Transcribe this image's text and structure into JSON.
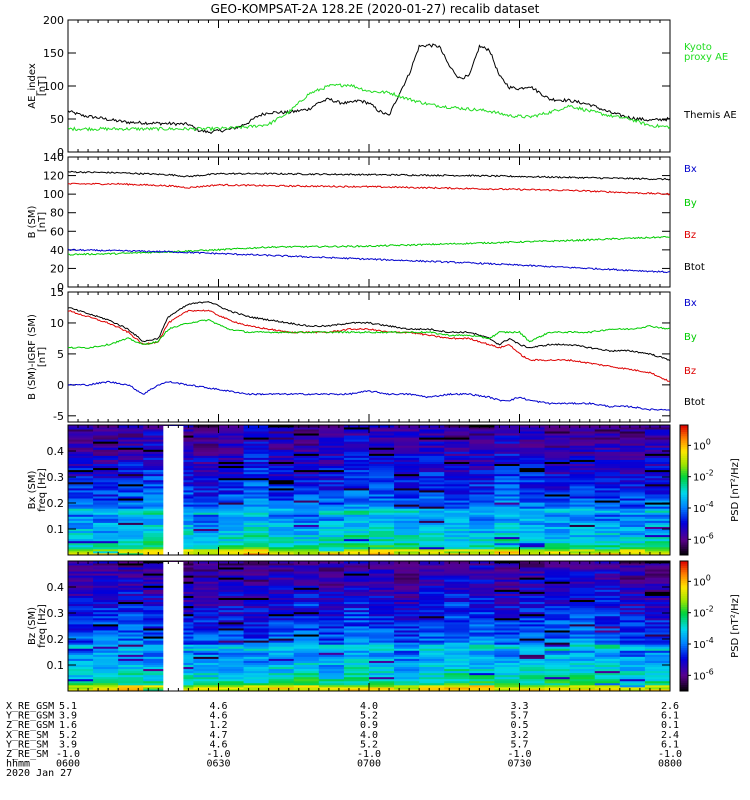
{
  "title": "GEO-KOMPSAT-2A 128.2E (2020-01-27) recalib dataset",
  "colors": {
    "black": "#000000",
    "red": "#dd0000",
    "green": "#00cc00",
    "blue": "#0000cc",
    "kyoto": "#22dd22"
  },
  "chart_data": [
    {
      "type": "line",
      "title": "AE index",
      "ylabel": "AE_index [nT]",
      "ylabel_lines": [
        "AE_index",
        "[nT]"
      ],
      "ylim": [
        0,
        200
      ],
      "yticks": [
        0,
        50,
        100,
        150,
        200
      ],
      "xlim": [
        0,
        120
      ],
      "legend": [
        {
          "label": "Kyoto",
          "color": "#22dd22"
        },
        {
          "label": "proxy AE",
          "color": "#22dd22"
        },
        {
          "label": "Themis AE",
          "color": "#000000"
        }
      ],
      "series": [
        {
          "name": "Themis AE",
          "color": "#000000",
          "x": [
            0,
            3,
            6,
            9,
            12,
            16,
            20,
            24,
            26,
            28,
            30,
            32,
            34,
            36,
            38,
            40,
            44,
            48,
            50,
            52,
            54,
            56,
            58,
            60,
            62,
            64,
            66,
            68,
            70,
            72,
            74,
            76,
            78,
            80,
            82,
            84,
            86,
            88,
            90,
            92,
            96,
            100,
            104,
            108,
            112,
            116,
            120
          ],
          "values": [
            62,
            55,
            52,
            48,
            45,
            44,
            43,
            42,
            33,
            30,
            32,
            34,
            38,
            45,
            55,
            60,
            60,
            65,
            75,
            80,
            75,
            74,
            78,
            74,
            62,
            55,
            88,
            118,
            160,
            162,
            160,
            130,
            112,
            115,
            160,
            155,
            115,
            98,
            96,
            100,
            80,
            78,
            72,
            60,
            52,
            48,
            50
          ]
        },
        {
          "name": "Kyoto proxy AE",
          "color": "#22dd22",
          "x": [
            0,
            10,
            20,
            24,
            28,
            32,
            36,
            40,
            44,
            48,
            52,
            56,
            60,
            64,
            68,
            72,
            76,
            80,
            84,
            88,
            92,
            96,
            100,
            104,
            108,
            112,
            116,
            120
          ],
          "values": [
            35,
            35,
            35,
            35,
            35,
            36,
            38,
            42,
            60,
            88,
            100,
            102,
            92,
            90,
            80,
            72,
            68,
            65,
            62,
            55,
            53,
            60,
            70,
            62,
            55,
            50,
            40,
            38
          ]
        }
      ]
    },
    {
      "type": "line",
      "title": "B (SM)",
      "ylabel": "B (SM) [nT]",
      "ylabel_lines": [
        "B (SM)",
        "[nT]"
      ],
      "ylim": [
        0,
        140
      ],
      "yticks": [
        0,
        20,
        40,
        60,
        80,
        100,
        120,
        140
      ],
      "xlim": [
        0,
        120
      ],
      "legend": [
        {
          "label": "Bx",
          "color": "#0000cc"
        },
        {
          "label": "By",
          "color": "#00cc00"
        },
        {
          "label": "Bz",
          "color": "#dd0000"
        },
        {
          "label": "Btot",
          "color": "#000000"
        }
      ],
      "series": [
        {
          "name": "Btot",
          "color": "#000000",
          "x": [
            0,
            10,
            20,
            24,
            30,
            40,
            60,
            80,
            100,
            120
          ],
          "values": [
            124,
            123,
            121,
            119,
            122,
            122,
            121,
            120,
            118,
            116
          ]
        },
        {
          "name": "Bz",
          "color": "#dd0000",
          "x": [
            0,
            10,
            20,
            24,
            30,
            40,
            60,
            80,
            100,
            120
          ],
          "values": [
            111,
            111,
            109,
            107,
            110,
            109,
            108,
            106,
            104,
            100
          ]
        },
        {
          "name": "By",
          "color": "#00cc00",
          "x": [
            0,
            10,
            20,
            30,
            40,
            60,
            80,
            100,
            120
          ],
          "values": [
            35,
            36,
            38,
            40,
            43,
            44,
            47,
            50,
            54
          ]
        },
        {
          "name": "Bx",
          "color": "#0000cc",
          "x": [
            0,
            10,
            20,
            30,
            40,
            60,
            80,
            100,
            120
          ],
          "values": [
            40,
            39,
            38,
            36,
            34,
            30,
            26,
            21,
            16
          ]
        }
      ]
    },
    {
      "type": "line",
      "title": "B (SM)-IGRF (SM)",
      "ylabel": "B (SM)-IGRF (SM) [nT]",
      "ylabel_lines": [
        "B (SM)-IGRF (SM)",
        "[nT]"
      ],
      "ylim": [
        -6,
        15
      ],
      "yticks": [
        -5,
        0,
        5,
        10,
        15
      ],
      "xlim": [
        0,
        120
      ],
      "legend": [
        {
          "label": "Bx",
          "color": "#0000cc"
        },
        {
          "label": "By",
          "color": "#00cc00"
        },
        {
          "label": "Bz",
          "color": "#dd0000"
        },
        {
          "label": "Btot",
          "color": "#000000"
        }
      ],
      "series": [
        {
          "name": "Btot",
          "color": "#000000",
          "x": [
            0,
            4,
            8,
            12,
            15,
            18,
            20,
            24,
            28,
            32,
            36,
            40,
            44,
            48,
            52,
            56,
            60,
            64,
            68,
            72,
            76,
            80,
            84,
            86,
            88,
            90,
            92,
            96,
            100,
            104,
            108,
            112,
            116,
            120
          ],
          "values": [
            12.5,
            11.5,
            10.5,
            9,
            7,
            7.5,
            11,
            13,
            13.5,
            12,
            11,
            10.5,
            10,
            9.5,
            9.5,
            10,
            10,
            9.5,
            9,
            9,
            8.5,
            8.5,
            7.5,
            6.5,
            7.5,
            6.5,
            6,
            6.5,
            6.5,
            6,
            5.5,
            5.5,
            5,
            4
          ]
        },
        {
          "name": "Bz",
          "color": "#dd0000",
          "x": [
            0,
            4,
            8,
            12,
            15,
            18,
            20,
            24,
            28,
            32,
            36,
            40,
            44,
            48,
            52,
            56,
            60,
            64,
            68,
            72,
            76,
            80,
            84,
            86,
            88,
            90,
            92,
            96,
            100,
            104,
            108,
            112,
            116,
            120
          ],
          "values": [
            12,
            11,
            10,
            8.5,
            6.5,
            7,
            10,
            12,
            12,
            10.5,
            9.5,
            9,
            8.5,
            8.5,
            8.5,
            9,
            9,
            8.5,
            8.5,
            8,
            7.5,
            7.5,
            6.5,
            6,
            6.5,
            5,
            4,
            4,
            4,
            3.5,
            3,
            2.5,
            2,
            0.5
          ]
        },
        {
          "name": "By",
          "color": "#00cc00",
          "x": [
            0,
            4,
            8,
            12,
            15,
            18,
            20,
            24,
            28,
            32,
            36,
            40,
            44,
            48,
            52,
            56,
            60,
            64,
            68,
            72,
            76,
            80,
            84,
            86,
            88,
            90,
            92,
            96,
            100,
            104,
            108,
            112,
            116,
            120
          ],
          "values": [
            6,
            6,
            6.5,
            7.5,
            6.5,
            7,
            9,
            10,
            10.5,
            9,
            8.5,
            8.5,
            8.5,
            8.5,
            8.5,
            8.5,
            8.5,
            8.5,
            8.5,
            8.5,
            8,
            8,
            7.5,
            8.5,
            8.5,
            8.5,
            7,
            8.5,
            8.5,
            8.5,
            9,
            9,
            9.5,
            9
          ]
        },
        {
          "name": "Bx",
          "color": "#0000cc",
          "x": [
            0,
            4,
            8,
            12,
            15,
            18,
            20,
            24,
            28,
            32,
            36,
            40,
            44,
            48,
            52,
            56,
            60,
            64,
            68,
            72,
            76,
            80,
            84,
            86,
            88,
            90,
            92,
            96,
            100,
            104,
            108,
            112,
            116,
            120
          ],
          "values": [
            0,
            0,
            0.5,
            0,
            -1.5,
            0,
            0.5,
            0,
            -0.5,
            -1,
            -1.5,
            -1.5,
            -1.5,
            -1.5,
            -1.5,
            -1.5,
            -1,
            -1.5,
            -1.5,
            -2,
            -1.5,
            -1.5,
            -2,
            -2.5,
            -2.5,
            -2,
            -2.5,
            -3,
            -3,
            -3,
            -3.5,
            -3.5,
            -4,
            -4
          ]
        }
      ]
    },
    {
      "type": "heatmap",
      "title": "Bx (SM) spectrogram",
      "ylabel": "Bx (SM) freq [Hz]",
      "ylabel_lines": [
        "Bx (SM)",
        "freq [Hz]"
      ],
      "ylim": [
        0,
        0.5
      ],
      "yticks": [
        0.1,
        0.2,
        0.3,
        0.4
      ],
      "xlim": [
        0,
        120
      ],
      "data_gap": [
        19,
        23
      ],
      "colorbar_label": "PSD [nT²/Hz]",
      "colorbar_ticks": [
        {
          "base": "10",
          "exp": "0",
          "log": 0
        },
        {
          "base": "10",
          "exp": "-2",
          "log": -2
        },
        {
          "base": "10",
          "exp": "-4",
          "log": -4
        },
        {
          "base": "10",
          "exp": "-6",
          "log": -6
        }
      ],
      "clim": [
        -7,
        1.3
      ]
    },
    {
      "type": "heatmap",
      "title": "Bz (SM) spectrogram",
      "ylabel": "Bz (SM) freq [Hz]",
      "ylabel_lines": [
        "Bz (SM)",
        "freq [Hz]"
      ],
      "ylim": [
        0,
        0.5
      ],
      "yticks": [
        0.1,
        0.2,
        0.3,
        0.4
      ],
      "xlim": [
        0,
        120
      ],
      "data_gap": [
        19,
        23
      ],
      "colorbar_label": "PSD [nT²/Hz]",
      "colorbar_ticks": [
        {
          "base": "10",
          "exp": "0",
          "log": 0
        },
        {
          "base": "10",
          "exp": "-2",
          "log": -2
        },
        {
          "base": "10",
          "exp": "-4",
          "log": -4
        },
        {
          "base": "10",
          "exp": "-6",
          "log": -6
        }
      ],
      "clim": [
        -7,
        1.3
      ]
    }
  ],
  "orbit_table": {
    "tick_minutes": [
      0,
      30,
      60,
      90,
      120
    ],
    "rows": [
      {
        "label": "X_RE_GSM",
        "values": [
          "5.1",
          "4.6",
          "4.0",
          "3.3",
          "2.6"
        ]
      },
      {
        "label": "Y_RE_GSM",
        "values": [
          "3.9",
          "4.6",
          "5.2",
          "5.7",
          "6.1"
        ]
      },
      {
        "label": "Z_RE_GSM",
        "values": [
          "1.6",
          "1.2",
          "0.9",
          "0.5",
          "0.1"
        ]
      },
      {
        "label": "X_RE_SM",
        "values": [
          "5.2",
          "4.7",
          "4.0",
          "3.2",
          "2.4"
        ]
      },
      {
        "label": "Y_RE_SM",
        "values": [
          "3.9",
          "4.6",
          "5.2",
          "5.7",
          "6.1"
        ]
      },
      {
        "label": "Z_RE_SM",
        "values": [
          "-1.0",
          "-1.0",
          "-1.0",
          "-1.0",
          "-1.0"
        ]
      },
      {
        "label": "hhmm",
        "values": [
          "0600",
          "0630",
          "0700",
          "0730",
          "0800"
        ]
      }
    ],
    "date": "2020 Jan 27"
  }
}
